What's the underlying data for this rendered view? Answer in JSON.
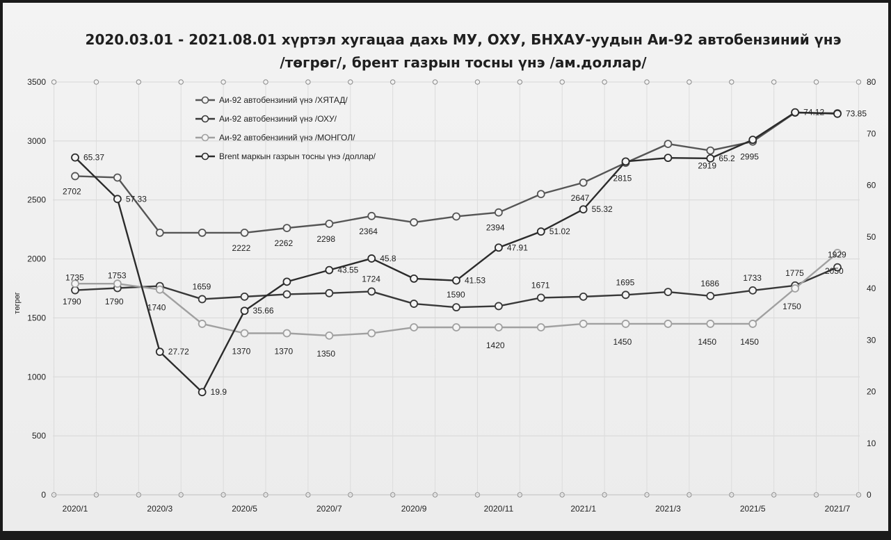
{
  "chart_data": {
    "type": "line",
    "title_lines": [
      "2020.03.01 - 2021.08.01 хүртэл хугацаа дахь МУ, ОХУ, БНХАУ-уудын Аи-92 автобензиний үнэ",
      "/төгрөг/, брент газрын тосны үнэ /ам.доллар/"
    ],
    "ylabel": "төгрөг",
    "y_left": {
      "min": 0,
      "max": 3500,
      "ticks": [
        "0",
        "500",
        "1000",
        "1500",
        "2000",
        "2500",
        "3000",
        "3500"
      ]
    },
    "y_right": {
      "min": 0,
      "max": 80,
      "ticks": [
        "0",
        "10",
        "20",
        "30",
        "40",
        "50",
        "60",
        "70",
        "80"
      ]
    },
    "x_tick_labels": [
      "2020/1",
      "2020/3",
      "2020/5",
      "2020/7",
      "2020/9",
      "2020/11",
      "2021/1",
      "2021/3",
      "2021/5",
      "2021/7"
    ],
    "x": [
      "2020/1",
      "2020/2",
      "2020/3",
      "2020/4",
      "2020/5",
      "2020/6",
      "2020/7",
      "2020/8",
      "2020/9",
      "2020/10",
      "2020/11",
      "2020/12",
      "2021/1",
      "2021/2",
      "2021/3",
      "2021/4",
      "2021/5",
      "2021/6",
      "2021/7"
    ],
    "series": [
      {
        "name": "Аи-92 автобензиний үнэ /ХЯТАД/",
        "axis": "left",
        "color": "#555555",
        "values": [
          2702,
          2690,
          2222,
          2222,
          2222,
          2262,
          2298,
          2364,
          2310,
          2360,
          2394,
          2550,
          2647,
          2815,
          2975,
          2919,
          2995,
          3240,
          3235
        ],
        "labels": [
          "2702",
          "",
          "",
          "",
          "2222",
          "2262",
          "2298",
          "2364",
          "",
          "",
          "2394",
          "",
          "2647",
          "2815",
          "",
          "2919",
          "2995",
          "",
          ""
        ]
      },
      {
        "name": "Аи-92 автобензиний үнэ /ОХУ/",
        "axis": "left",
        "color": "#383838",
        "values": [
          1735,
          1753,
          1770,
          1659,
          1680,
          1700,
          1710,
          1724,
          1620,
          1590,
          1600,
          1671,
          1680,
          1695,
          1720,
          1686,
          1733,
          1775,
          1929
        ],
        "labels": [
          "1735",
          "1753",
          "",
          "1659",
          "",
          "",
          "",
          "1724",
          "",
          "1590",
          "",
          "1671",
          "",
          "1695",
          "",
          "1686",
          "1733",
          "1775",
          "1929"
        ]
      },
      {
        "name": "Аи-92 автобензиний үнэ /МОНГОЛ/",
        "axis": "left",
        "color": "#a0a0a0",
        "values": [
          1790,
          1790,
          1740,
          1450,
          1370,
          1370,
          1350,
          1370,
          1420,
          1420,
          1420,
          1420,
          1450,
          1450,
          1450,
          1450,
          1450,
          1750,
          2050
        ],
        "labels": [
          "1790",
          "1790",
          "1740",
          "",
          "1370",
          "1370",
          "1350",
          "",
          "",
          "",
          "1420",
          "",
          "",
          "1450",
          "",
          "1450",
          "1450",
          "1750",
          "2050"
        ]
      },
      {
        "name": "Brent маркын газрын тосны үнэ /доллар/",
        "axis": "right",
        "color": "#2b2b2b",
        "values": [
          65.37,
          57.33,
          27.72,
          19.9,
          35.66,
          41.3,
          43.55,
          45.8,
          41.9,
          41.53,
          47.91,
          51.02,
          55.32,
          64.6,
          65.3,
          65.2,
          68.8,
          74.12,
          73.85
        ],
        "labels": [
          "65.37",
          "57.33",
          "27.72",
          "19.9",
          "35.66",
          "",
          "43.55",
          "45.8",
          "",
          "41.53",
          "47.91",
          "51.02",
          "55.32",
          "",
          "",
          "65.2",
          "",
          "74.12",
          "73.85"
        ]
      }
    ],
    "grid": true,
    "legend_position": "top-left"
  }
}
